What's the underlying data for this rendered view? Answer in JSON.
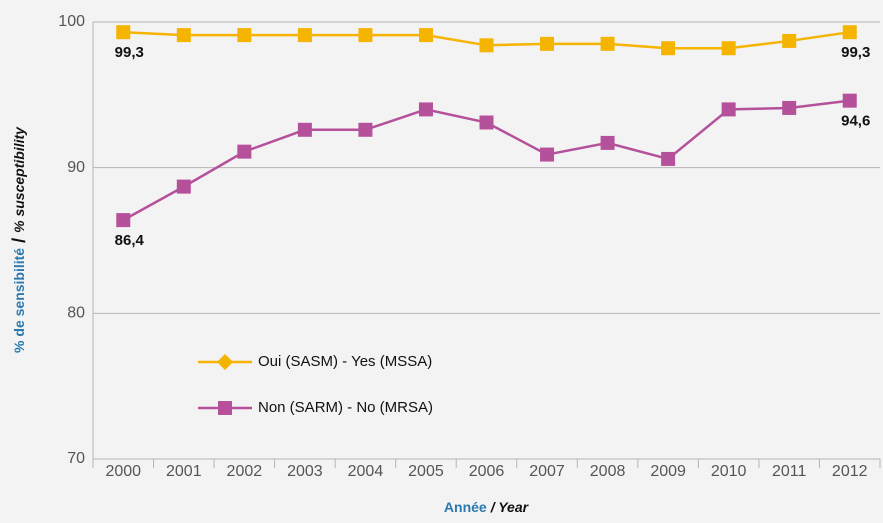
{
  "chart_data": {
    "type": "line",
    "categories": [
      "2000",
      "2001",
      "2002",
      "2003",
      "2004",
      "2005",
      "2006",
      "2007",
      "2008",
      "2009",
      "2010",
      "2011",
      "2012"
    ],
    "series": [
      {
        "name": "Oui (SASM) - Yes (MSSA)",
        "color": "#f5b400",
        "marker": "square",
        "legend_marker": "diamond",
        "values": [
          99.3,
          99.1,
          99.1,
          99.1,
          99.1,
          99.1,
          98.4,
          98.5,
          98.5,
          98.2,
          98.2,
          98.7,
          99.3
        ],
        "value_labels": [
          "99,3",
          null,
          null,
          null,
          null,
          null,
          null,
          null,
          null,
          null,
          null,
          null,
          "99,3"
        ]
      },
      {
        "name": "Non (SARM) - No (MRSA)",
        "color": "#b5519a",
        "marker": "square",
        "legend_marker": "square",
        "values": [
          86.4,
          88.7,
          91.1,
          92.6,
          92.6,
          94.0,
          93.1,
          90.9,
          91.7,
          90.6,
          94.0,
          94.1,
          94.6
        ],
        "value_labels": [
          "86,4",
          null,
          null,
          null,
          null,
          null,
          null,
          null,
          null,
          null,
          null,
          null,
          "94,6"
        ]
      }
    ],
    "ylabel": [
      "% de sensibilité",
      "/",
      "% susceptibility"
    ],
    "xlabel": [
      "Année",
      "/ Year"
    ],
    "ylim": [
      70,
      100
    ],
    "yticks": [
      70,
      80,
      90,
      100
    ],
    "grid": true,
    "legend": "lower left"
  }
}
